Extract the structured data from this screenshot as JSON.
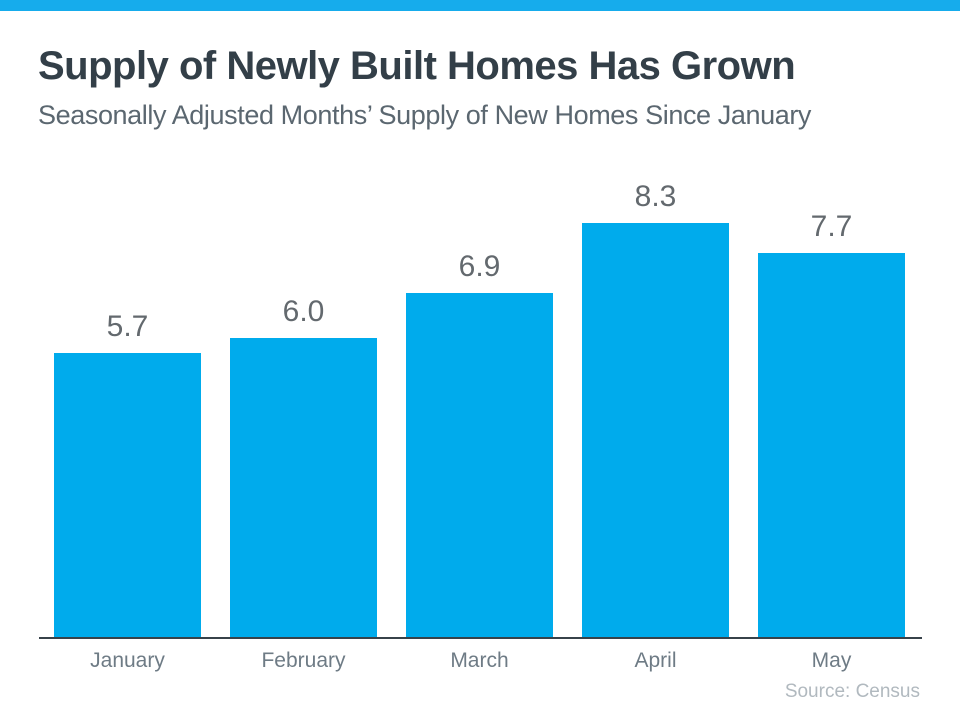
{
  "page": {
    "title": "Supply of Newly Built Homes Has Grown",
    "subtitle": "Seasonally Adjusted Months’ Supply of New Homes Since January",
    "source": "Source: Census"
  },
  "colors": {
    "top_strip": "#16ACEC",
    "bar": "#00ABEC",
    "title": "#333F48",
    "subtitle": "#5B6770",
    "value_label": "#63696E",
    "month_label": "#6E7B85",
    "axis": "#37424A",
    "source": "#B1B9BF"
  },
  "chart_data": {
    "type": "bar",
    "categories": [
      "January",
      "February",
      "March",
      "April",
      "May"
    ],
    "values": [
      5.7,
      6.0,
      6.9,
      8.3,
      7.7
    ],
    "title": "Supply of Newly Built Homes Has Grown",
    "subtitle": "Seasonally Adjusted Months’ Supply of New Homes Since January",
    "xlabel": "",
    "ylabel": "",
    "ylim": [
      0,
      8.8
    ],
    "grid": false,
    "legend": false,
    "value_labels_shown": true,
    "value_label_format": "one_decimal",
    "bar_color": "#00ABEC",
    "source": "Source: Census"
  }
}
